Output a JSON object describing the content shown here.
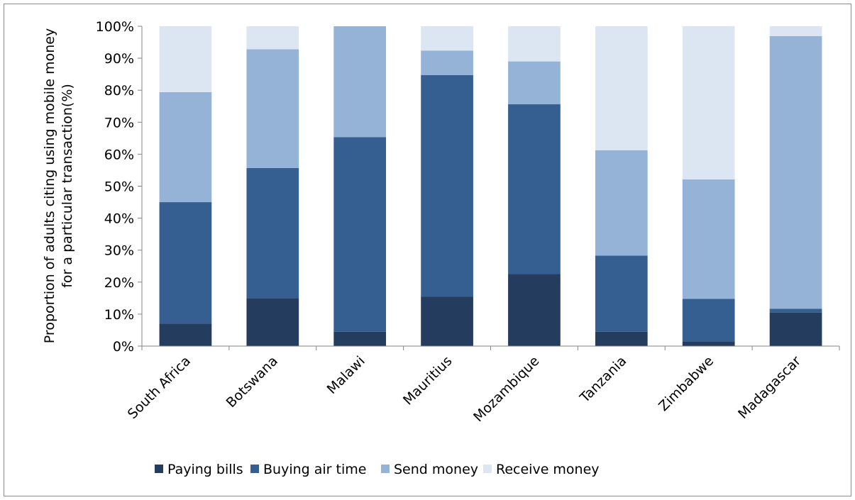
{
  "chart_data": {
    "type": "bar",
    "stacked": true,
    "title": "",
    "xlabel": "",
    "ylabel_lines": [
      "Proportion of adults citing using mobile money",
      "for a particular transaction(%)"
    ],
    "ylim": [
      0,
      100
    ],
    "y_ticks": [
      "0%",
      "10%",
      "20%",
      "30%",
      "40%",
      "50%",
      "60%",
      "70%",
      "80%",
      "90%",
      "100%"
    ],
    "grid": false,
    "legend_position": "bottom",
    "categories": [
      "South Africa",
      "Botswana",
      "Malawi",
      "Mauritius",
      "Mozambique",
      "Tanzania",
      "Zimbabwe",
      "Madagascar"
    ],
    "series": [
      {
        "name": "Paying bills",
        "color": "#243c5e",
        "values": [
          7,
          15,
          4.5,
          15.5,
          22.5,
          4.5,
          1.5,
          10.5
        ]
      },
      {
        "name": "Buying air time",
        "color": "#365f91",
        "values": [
          38,
          40.7,
          60.8,
          69.2,
          53.1,
          23.8,
          13.3,
          1.2
        ]
      },
      {
        "name": "Send money",
        "color": "#95b3d7",
        "values": [
          34.4,
          37.1,
          34.7,
          7.7,
          13.4,
          32.9,
          37.3,
          85.2
        ]
      },
      {
        "name": "Receive money",
        "color": "#dce6f2",
        "values": [
          20.6,
          7.2,
          0,
          7.6,
          11,
          38.8,
          47.9,
          3.1
        ]
      }
    ]
  }
}
